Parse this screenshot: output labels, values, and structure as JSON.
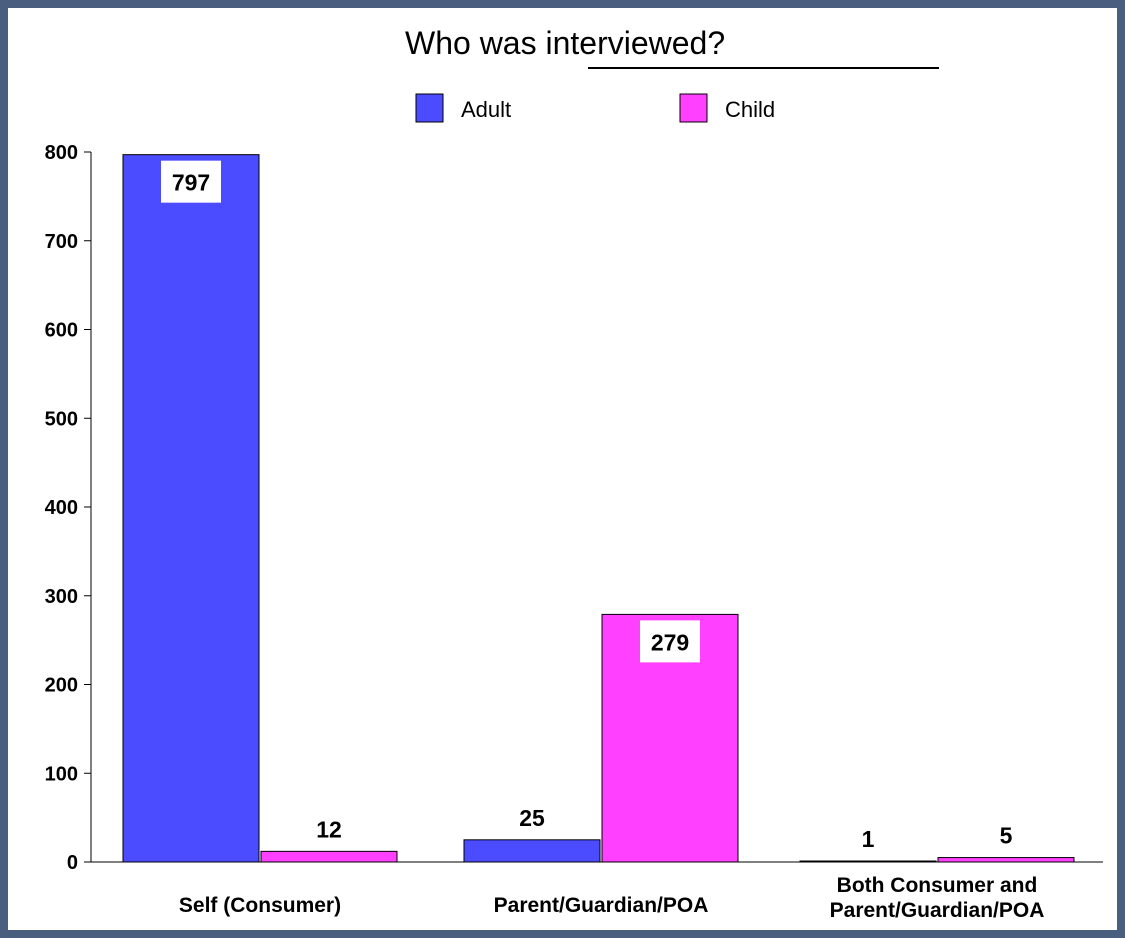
{
  "chart_data": {
    "type": "bar",
    "title": "Who was interviewed?",
    "categories": [
      "Self (Consumer)",
      "Parent/Guardian/POA",
      "Both Consumer and\nParent/Guardian/POA"
    ],
    "series": [
      {
        "name": "Adult",
        "values": [
          797,
          25,
          1
        ]
      },
      {
        "name": "Child",
        "values": [
          12,
          279,
          5
        ]
      }
    ],
    "yticks": [
      0,
      100,
      200,
      300,
      400,
      500,
      600,
      700,
      800
    ],
    "ylim": [
      0,
      800
    ],
    "xlabel": "",
    "ylabel": "",
    "legend_position": "top",
    "grid": false,
    "colors": {
      "Adult": "#4b4bff",
      "Child": "#ff40ff"
    }
  }
}
